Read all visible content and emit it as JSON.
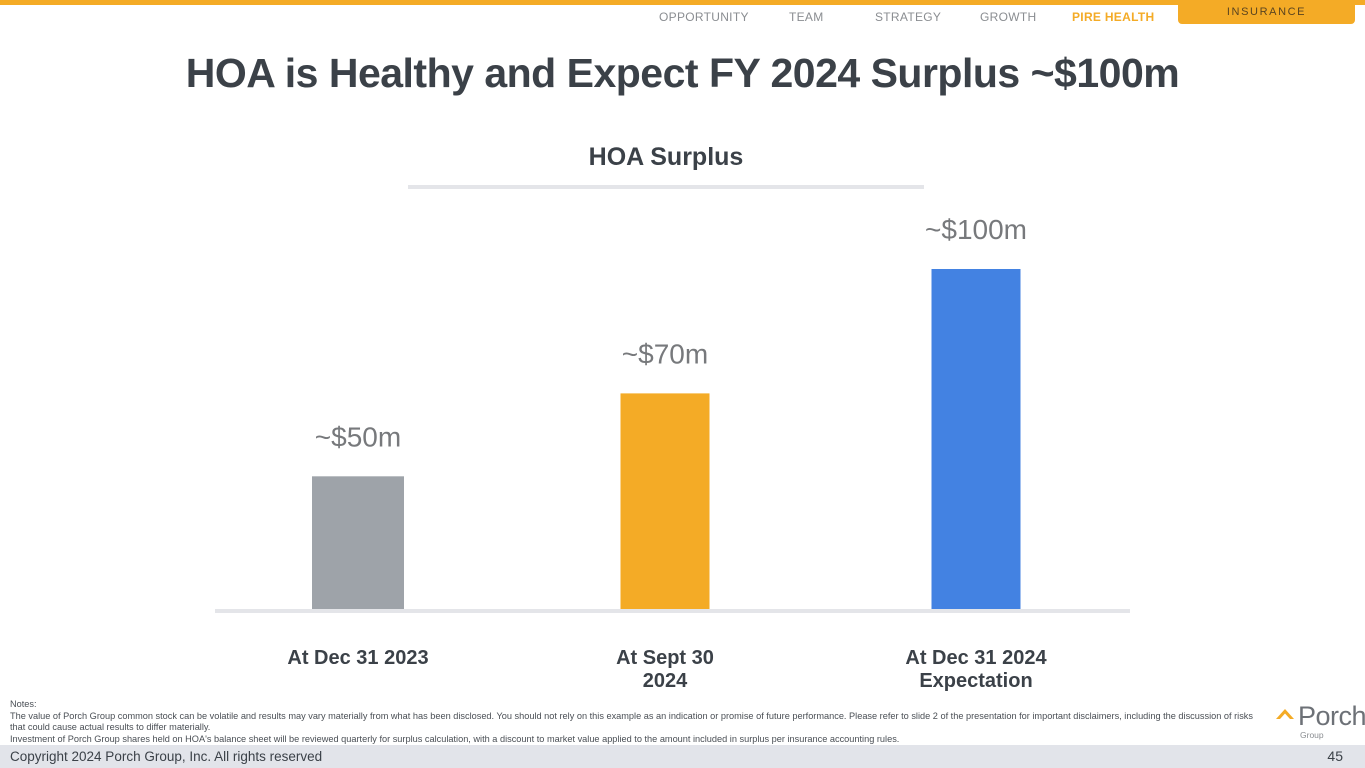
{
  "nav": {
    "items": [
      "OPPORTUNITY",
      "TEAM",
      "STRATEGY",
      "GROWTH",
      "PIRE HEALTH"
    ],
    "active_index": 4,
    "tab_label": "INSURANCE"
  },
  "slide": {
    "title": "HOA is Healthy and Expect FY 2024 Surplus ~$100m"
  },
  "chart_data": {
    "type": "bar",
    "title": "HOA Surplus",
    "categories": [
      "At Dec 31 2023",
      "At Sept 30 2024",
      "At Dec 31 2024 Expectation"
    ],
    "category_lines": [
      [
        "At Dec 31 2023"
      ],
      [
        "At Sept 30",
        "2024"
      ],
      [
        "At Dec 31 2024",
        "Expectation"
      ]
    ],
    "values": [
      50,
      70,
      100
    ],
    "data_labels": [
      "~$50m",
      "~$70m",
      "~$100m"
    ],
    "colors": [
      "#9ea3a9",
      "#f4ab26",
      "#4382e2"
    ],
    "unit": "$m",
    "xlabel": "",
    "ylabel": "",
    "ylim": [
      0,
      100
    ],
    "grid": false,
    "legend": "none"
  },
  "notes": {
    "heading": "Notes:",
    "lines": [
      "The value of Porch Group common stock can be volatile and results may vary materially from what has been disclosed. You should not rely on this example as an indication or promise of future performance. Please refer to slide 2 of the presentation for important disclaimers, including the discussion of risks that could cause actual results to differ materially.",
      "Investment of Porch Group shares held on HOA's balance sheet will be reviewed quarterly for surplus calculation, with a discount to market value applied to the amount included in surplus per insurance accounting rules."
    ]
  },
  "logo": {
    "word": "Porch",
    "sub": "Group"
  },
  "footer": {
    "copyright": "Copyright 2024 Porch Group, Inc. All rights reserved",
    "page_number": "45"
  }
}
